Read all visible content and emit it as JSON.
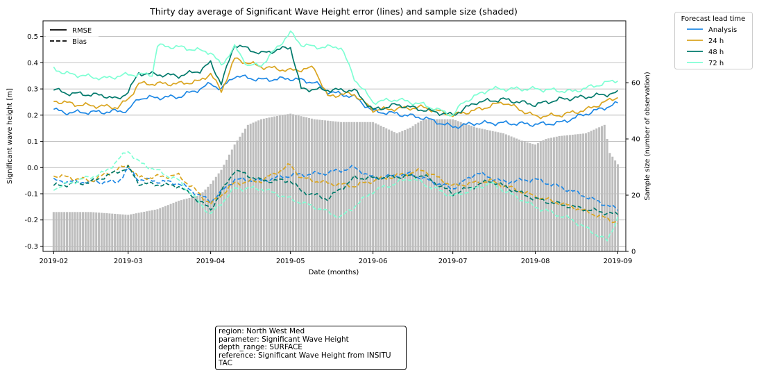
{
  "chart_data": {
    "type": "line",
    "title": "Thirty day average of Significant Wave Height error (lines) and sample size (shaded)",
    "xlabel": "Date (months)",
    "ylabel": "Significant wave height [m]",
    "y2label": "Sample size (number of observation)",
    "xlim": [
      "2019-01-28",
      "2019-09-04"
    ],
    "ylim": [
      -0.32,
      0.56
    ],
    "y2lim": [
      0,
      82
    ],
    "x_ticks": [
      "2019-02",
      "2019-03",
      "2019-04",
      "2019-05",
      "2019-06",
      "2019-07",
      "2019-08",
      "2019-09"
    ],
    "y_ticks": [
      "-0.3",
      "-0.2",
      "-0.1",
      "0.0",
      "0.1",
      "0.2",
      "0.3",
      "0.4",
      "0.5"
    ],
    "y2_ticks": [
      "0",
      "20",
      "40",
      "60"
    ],
    "grid": "horizontal",
    "style_legend": {
      "position": "upper-left",
      "items": [
        {
          "label": "RMSE",
          "dash": "solid"
        },
        {
          "label": "Bias",
          "dash": "dashed"
        }
      ]
    },
    "legend": {
      "title": "Forecast lead time",
      "position": "outside-right",
      "items": [
        "Analysis",
        "24 h",
        "48 h",
        "72 h"
      ]
    },
    "sample_size": {
      "color": "#bdbdbd",
      "x": [
        "2019-02-01",
        "2019-02-15",
        "2019-03-01",
        "2019-03-12",
        "2019-03-20",
        "2019-03-28",
        "2019-04-01",
        "2019-04-05",
        "2019-04-10",
        "2019-04-15",
        "2019-04-20",
        "2019-04-25",
        "2019-05-01",
        "2019-05-10",
        "2019-05-20",
        "2019-06-01",
        "2019-06-10",
        "2019-06-15",
        "2019-06-20",
        "2019-07-01",
        "2019-07-10",
        "2019-07-20",
        "2019-07-28",
        "2019-08-01",
        "2019-08-05",
        "2019-08-10",
        "2019-08-20",
        "2019-08-27",
        "2019-08-29",
        "2019-09-01"
      ],
      "values": [
        14,
        14,
        13,
        15,
        18,
        20,
        24,
        29,
        38,
        45,
        47,
        48,
        49,
        47,
        46,
        46,
        42,
        44,
        47,
        47,
        44,
        42,
        39,
        38,
        40,
        41,
        42,
        45,
        35,
        31
      ]
    },
    "series": [
      {
        "name": "Analysis",
        "color": "#1e88e5",
        "rmse": {
          "x": [
            "2019-02-01",
            "2019-02-05",
            "2019-02-20",
            "2019-03-01",
            "2019-03-05",
            "2019-03-20",
            "2019-03-28",
            "2019-04-01",
            "2019-04-05",
            "2019-04-10",
            "2019-04-20",
            "2019-05-01",
            "2019-05-10",
            "2019-05-15",
            "2019-05-20",
            "2019-05-25",
            "2019-06-01",
            "2019-06-10",
            "2019-06-20",
            "2019-07-01",
            "2019-07-10",
            "2019-07-20",
            "2019-08-01",
            "2019-08-10",
            "2019-08-20",
            "2019-09-01"
          ],
          "values": [
            0.222,
            0.21,
            0.212,
            0.218,
            0.265,
            0.27,
            0.3,
            0.32,
            0.3,
            0.35,
            0.335,
            0.34,
            0.325,
            0.29,
            0.28,
            0.27,
            0.215,
            0.205,
            0.19,
            0.155,
            0.17,
            0.17,
            0.165,
            0.17,
            0.205,
            0.245
          ]
        },
        "bias": {
          "x": [
            "2019-02-01",
            "2019-02-10",
            "2019-02-25",
            "2019-03-01",
            "2019-03-05",
            "2019-03-20",
            "2019-04-01",
            "2019-04-10",
            "2019-04-20",
            "2019-05-01",
            "2019-05-15",
            "2019-05-25",
            "2019-06-01",
            "2019-06-15",
            "2019-07-01",
            "2019-07-10",
            "2019-07-20",
            "2019-08-01",
            "2019-08-15",
            "2019-09-01"
          ],
          "values": [
            -0.05,
            -0.055,
            -0.055,
            -0.005,
            -0.045,
            -0.06,
            -0.13,
            -0.045,
            -0.05,
            -0.03,
            -0.02,
            0.0,
            -0.04,
            -0.025,
            -0.08,
            -0.02,
            -0.055,
            -0.045,
            -0.09,
            -0.16
          ]
        }
      },
      {
        "name": "24 h",
        "color": "#daa520",
        "rmse": {
          "x": [
            "2019-02-01",
            "2019-02-10",
            "2019-02-25",
            "2019-03-01",
            "2019-03-05",
            "2019-03-20",
            "2019-03-28",
            "2019-04-01",
            "2019-04-05",
            "2019-04-10",
            "2019-04-20",
            "2019-05-01",
            "2019-05-10",
            "2019-05-15",
            "2019-05-20",
            "2019-05-25",
            "2019-06-01",
            "2019-06-20",
            "2019-07-01",
            "2019-07-10",
            "2019-07-20",
            "2019-08-01",
            "2019-08-10",
            "2019-08-20",
            "2019-09-01"
          ],
          "values": [
            0.255,
            0.24,
            0.23,
            0.26,
            0.32,
            0.32,
            0.33,
            0.36,
            0.29,
            0.415,
            0.385,
            0.37,
            0.38,
            0.27,
            0.28,
            0.28,
            0.22,
            0.23,
            0.2,
            0.22,
            0.25,
            0.195,
            0.2,
            0.22,
            0.27
          ]
        },
        "bias": {
          "x": [
            "2019-02-01",
            "2019-02-15",
            "2019-03-01",
            "2019-03-05",
            "2019-03-20",
            "2019-04-01",
            "2019-04-10",
            "2019-04-20",
            "2019-05-01",
            "2019-05-05",
            "2019-05-15",
            "2019-05-25",
            "2019-06-01",
            "2019-06-20",
            "2019-07-01",
            "2019-07-15",
            "2019-08-01",
            "2019-08-15",
            "2019-09-01"
          ],
          "values": [
            -0.03,
            -0.05,
            0.01,
            -0.04,
            -0.03,
            -0.14,
            -0.06,
            -0.05,
            0.01,
            -0.04,
            -0.06,
            -0.07,
            -0.05,
            -0.01,
            -0.07,
            -0.05,
            -0.11,
            -0.15,
            -0.21
          ]
        }
      },
      {
        "name": "48 h",
        "color": "#00796b",
        "rmse": {
          "x": [
            "2019-02-01",
            "2019-02-05",
            "2019-02-20",
            "2019-02-25",
            "2019-03-01",
            "2019-03-05",
            "2019-03-20",
            "2019-03-28",
            "2019-04-01",
            "2019-04-05",
            "2019-04-10",
            "2019-04-20",
            "2019-05-01",
            "2019-05-05",
            "2019-05-20",
            "2019-05-25",
            "2019-06-01",
            "2019-06-10",
            "2019-06-20",
            "2019-07-01",
            "2019-07-10",
            "2019-07-20",
            "2019-08-01",
            "2019-08-10",
            "2019-08-20",
            "2019-09-01"
          ],
          "values": [
            0.3,
            0.285,
            0.275,
            0.26,
            0.29,
            0.36,
            0.35,
            0.37,
            0.4,
            0.32,
            0.47,
            0.435,
            0.46,
            0.3,
            0.295,
            0.295,
            0.22,
            0.24,
            0.22,
            0.2,
            0.25,
            0.26,
            0.24,
            0.26,
            0.27,
            0.285
          ]
        },
        "bias": {
          "x": [
            "2019-02-01",
            "2019-02-15",
            "2019-03-01",
            "2019-03-05",
            "2019-03-20",
            "2019-04-01",
            "2019-04-10",
            "2019-04-20",
            "2019-05-01",
            "2019-05-05",
            "2019-05-15",
            "2019-05-25",
            "2019-06-01",
            "2019-06-20",
            "2019-07-01",
            "2019-07-15",
            "2019-08-01",
            "2019-08-15",
            "2019-09-01"
          ],
          "values": [
            -0.07,
            -0.055,
            0.0,
            -0.06,
            -0.07,
            -0.16,
            -0.01,
            -0.05,
            -0.05,
            -0.09,
            -0.12,
            -0.04,
            -0.04,
            -0.03,
            -0.1,
            -0.05,
            -0.12,
            -0.15,
            -0.18
          ]
        }
      },
      {
        "name": "72 h",
        "color": "#7fffd4",
        "rmse": {
          "x": [
            "2019-02-01",
            "2019-02-05",
            "2019-02-20",
            "2019-03-01",
            "2019-03-10",
            "2019-03-12",
            "2019-03-20",
            "2019-04-01",
            "2019-04-05",
            "2019-04-10",
            "2019-04-15",
            "2019-04-20",
            "2019-05-01",
            "2019-05-05",
            "2019-05-10",
            "2019-05-20",
            "2019-05-25",
            "2019-06-01",
            "2019-06-10",
            "2019-06-20",
            "2019-07-01",
            "2019-07-05",
            "2019-07-15",
            "2019-08-01",
            "2019-08-15",
            "2019-09-01"
          ],
          "values": [
            0.38,
            0.36,
            0.34,
            0.355,
            0.355,
            0.465,
            0.46,
            0.44,
            0.39,
            0.46,
            0.39,
            0.39,
            0.515,
            0.47,
            0.46,
            0.46,
            0.34,
            0.25,
            0.26,
            0.24,
            0.2,
            0.25,
            0.3,
            0.3,
            0.29,
            0.335
          ]
        },
        "bias": {
          "x": [
            "2019-02-01",
            "2019-02-10",
            "2019-02-20",
            "2019-03-01",
            "2019-03-05",
            "2019-03-20",
            "2019-04-01",
            "2019-04-10",
            "2019-04-20",
            "2019-05-01",
            "2019-05-10",
            "2019-05-20",
            "2019-06-01",
            "2019-06-15",
            "2019-07-01",
            "2019-07-15",
            "2019-08-01",
            "2019-08-15",
            "2019-08-28",
            "2019-09-01"
          ],
          "values": [
            -0.08,
            -0.05,
            -0.02,
            0.065,
            0.02,
            -0.05,
            -0.18,
            -0.08,
            -0.08,
            -0.12,
            -0.15,
            -0.19,
            -0.09,
            -0.04,
            -0.11,
            -0.06,
            -0.15,
            -0.2,
            -0.28,
            -0.19
          ]
        }
      }
    ]
  },
  "infobox": {
    "lines": [
      "region: North West Med",
      "parameter: Significant Wave Height",
      "depth_range: SURFACE",
      "reference: Significant Wave Height from INSITU TAC"
    ]
  }
}
